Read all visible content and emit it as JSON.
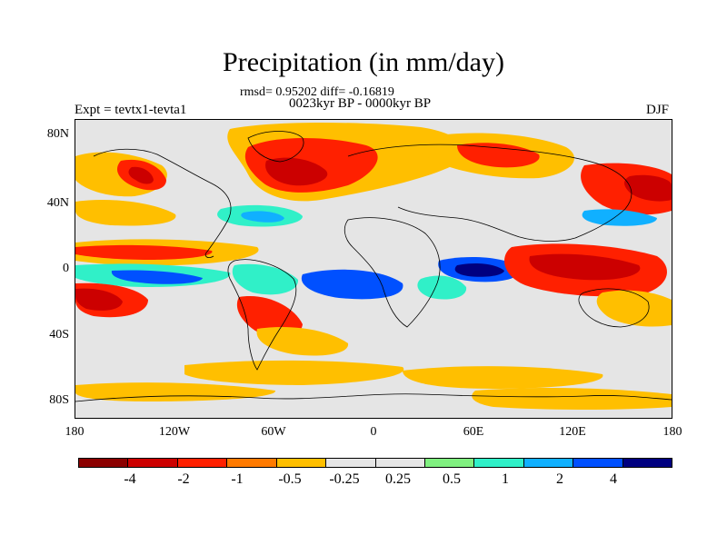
{
  "title": "Precipitation (in mm/day)",
  "stats": "rmsd= 0.95202 diff= -0.16819",
  "period": "0023kyr BP - 0000kyr BP",
  "experiment": "Expt = tevtx1-tevta1",
  "season": "DJF",
  "axes": {
    "y_labels": [
      "80N",
      "40N",
      "0",
      "40S",
      "80S"
    ],
    "x_labels": [
      "180",
      "120W",
      "60W",
      "0",
      "60E",
      "120E",
      "180"
    ]
  },
  "colorbar": {
    "colors": [
      "#8b0000",
      "#cc0000",
      "#ff2000",
      "#ff7a00",
      "#ffbf00",
      "#e5e5e5",
      "#e5e5e5",
      "#80f080",
      "#30f0c8",
      "#10b0ff",
      "#0050ff",
      "#000080"
    ],
    "labels": [
      "-4",
      "-2",
      "-1",
      "-0.5",
      "-0.25",
      "0.25",
      "0.5",
      "1",
      "2",
      "4"
    ]
  },
  "palette": {
    "background": "#e5e5e5",
    "orange": "#ffbf00",
    "dark_orange": "#ff7a00",
    "red": "#ff2000",
    "dark_red": "#cc0000",
    "green": "#80f080",
    "cyan": "#30f0c8",
    "light_blue": "#10b0ff",
    "blue": "#0050ff",
    "navy": "#000080",
    "coastline": "#000000"
  }
}
